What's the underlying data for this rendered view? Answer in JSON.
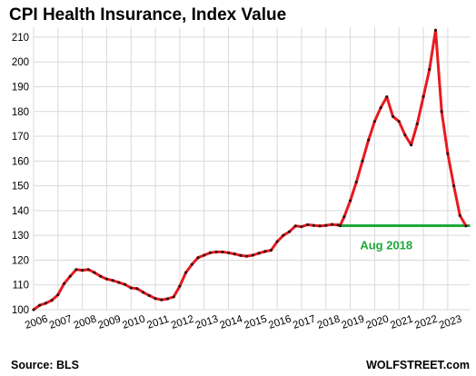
{
  "chart_data": {
    "type": "line",
    "title": "CPI Health Insurance, Index Value",
    "source": "Source: BLS",
    "watermark": "WOLFSTREET.com",
    "ylim": [
      100,
      214
    ],
    "yticks": [
      100,
      110,
      120,
      130,
      140,
      150,
      160,
      170,
      180,
      190,
      200,
      210
    ],
    "xlim": [
      2006.0,
      2023.9
    ],
    "xticks": [
      "2006",
      "2007",
      "2008",
      "2009",
      "2010",
      "2011",
      "2012",
      "2013",
      "2014",
      "2015",
      "2016",
      "2017",
      "2018",
      "2019",
      "2020",
      "2021",
      "2022",
      "2023"
    ],
    "grid": true,
    "colors": {
      "line": "#e8191f",
      "markers": "#3a1010",
      "reference": "#1fa83a"
    },
    "series": [
      {
        "x": [
          2006.0,
          2006.25,
          2006.5,
          2006.75,
          2007.0,
          2007.25,
          2007.5,
          2007.75,
          2008.0,
          2008.25,
          2008.5,
          2008.75,
          2009.0,
          2009.25,
          2009.5,
          2009.75,
          2010.0,
          2010.25,
          2010.5,
          2010.75,
          2011.0,
          2011.25,
          2011.5,
          2011.75,
          2012.0,
          2012.25,
          2012.5,
          2012.75,
          2013.0,
          2013.25,
          2013.5,
          2013.75,
          2014.0,
          2014.25,
          2014.5,
          2014.75,
          2015.0,
          2015.25,
          2015.5,
          2015.75,
          2016.0,
          2016.25,
          2016.5,
          2016.75,
          2017.0,
          2017.25,
          2017.5,
          2017.75,
          2018.0,
          2018.25,
          2018.5,
          2018.58,
          2018.75,
          2019.0,
          2019.25,
          2019.5,
          2019.75,
          2020.0,
          2020.25,
          2020.5,
          2020.75,
          2021.0,
          2021.25,
          2021.5,
          2021.75,
          2022.0,
          2022.25,
          2022.5,
          2022.75,
          2023.0,
          2023.25,
          2023.5,
          2023.75
        ],
        "values": [
          100.0,
          101.8,
          102.6,
          103.8,
          106.0,
          110.5,
          113.5,
          116.2,
          115.9,
          116.2,
          115.0,
          113.5,
          112.4,
          111.8,
          111.0,
          110.2,
          108.8,
          108.5,
          107.0,
          105.7,
          104.5,
          104.0,
          104.4,
          105.2,
          109.5,
          115.0,
          118.3,
          121.0,
          122.0,
          123.0,
          123.3,
          123.3,
          123.0,
          122.5,
          121.9,
          121.6,
          122.0,
          122.8,
          123.5,
          124.0,
          127.5,
          130.0,
          131.5,
          133.8,
          133.5,
          134.3,
          134.0,
          133.8,
          134.0,
          134.4,
          134.2,
          133.9,
          137.5,
          144.0,
          151.5,
          160.0,
          168.5,
          176.0,
          181.5,
          185.9,
          178.0,
          176.0,
          170.5,
          166.5,
          175.0,
          186.0,
          197.0,
          212.8,
          180.0,
          163.0,
          150.0,
          138.0,
          133.8
        ]
      }
    ],
    "reference_line": {
      "label": "Aug 2018",
      "value": 133.9,
      "x_start": 2018.58,
      "x_end": 2023.92
    }
  }
}
